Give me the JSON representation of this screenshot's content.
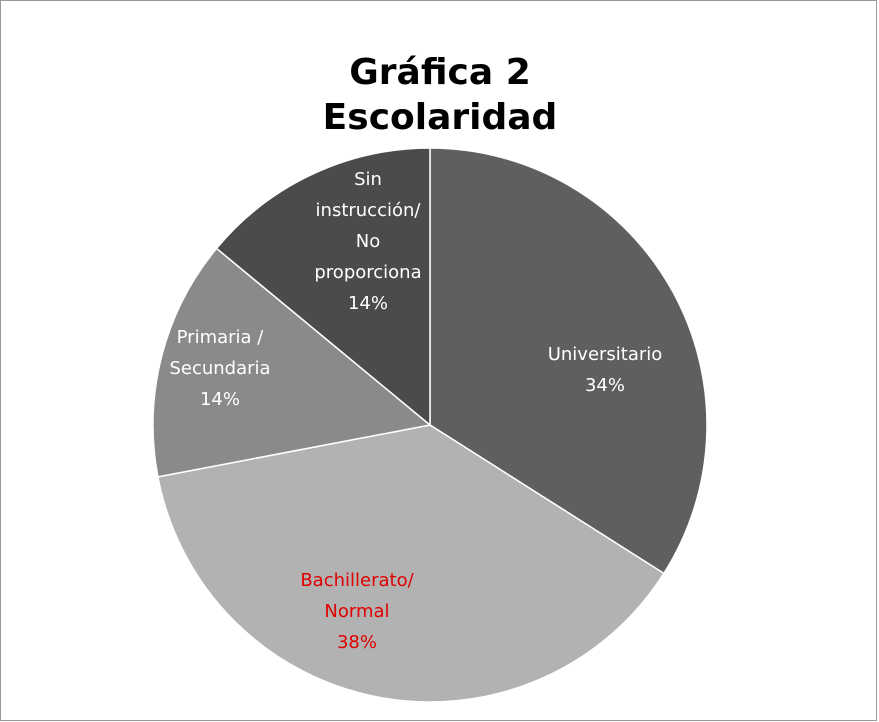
{
  "chart_data": {
    "type": "pie",
    "title": [
      "Gráfica 2",
      "Escolaridad"
    ],
    "categories": [
      "Universitario",
      "Bachillerato/\nNormal",
      "Primaria /\nSecundaria",
      "Sin\ninstrucción/\nNo\nproporciona"
    ],
    "values": [
      34,
      38,
      14,
      14
    ],
    "value_labels": [
      "34%",
      "38%",
      "14%",
      "14%"
    ],
    "colors": [
      "#5f5f5f",
      "#b2b2b2",
      "#8a8a8a",
      "#4b4b4b"
    ],
    "label_colors": [
      "#ffffff",
      "#e00000",
      "#ffffff",
      "#ffffff"
    ]
  }
}
